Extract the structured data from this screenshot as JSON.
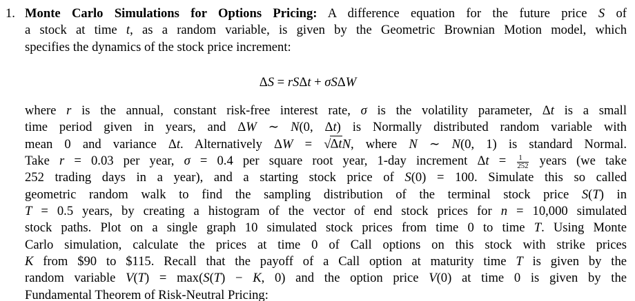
{
  "document": {
    "background_color": "#ffffff",
    "text_color": "#000000",
    "item_number": "1.",
    "heading_runs": [
      [
        "b",
        "Monte Carlo Simulations for Options Pricing:"
      ]
    ],
    "paragraph1": {
      "lines": [
        {
          "runs": [
            [
              "n",
              " A difference equation for the future price "
            ],
            [
              "i",
              "S"
            ],
            [
              "n",
              " of"
            ]
          ]
        },
        {
          "runs": [
            [
              "n",
              "a stock at time "
            ],
            [
              "i",
              "t"
            ],
            [
              "n",
              ", as a random variable, is given by the Geometric Brownian Motion model, which"
            ]
          ]
        },
        {
          "runs": [
            [
              "n",
              "specifies the dynamics of the stock price increment:"
            ]
          ]
        }
      ]
    },
    "equation": {
      "runs": [
        [
          "n",
          "Δ"
        ],
        [
          "i",
          "S"
        ],
        [
          "n",
          " = "
        ],
        [
          "i",
          "rS"
        ],
        [
          "n",
          "Δ"
        ],
        [
          "i",
          "t"
        ],
        [
          "n",
          " + "
        ],
        [
          "i",
          "σS"
        ],
        [
          "n",
          "Δ"
        ],
        [
          "i",
          "W"
        ]
      ]
    },
    "paragraph2": {
      "lines": [
        {
          "runs": [
            [
              "n",
              "where "
            ],
            [
              "i",
              "r"
            ],
            [
              "n",
              " is the annual, constant risk-free interest rate, "
            ],
            [
              "i",
              "σ"
            ],
            [
              "n",
              " is the volatility parameter, Δ"
            ],
            [
              "i",
              "t"
            ],
            [
              "n",
              " is a small"
            ]
          ]
        },
        {
          "runs": [
            [
              "n",
              "time period given in years, and Δ"
            ],
            [
              "i",
              "W"
            ],
            [
              "n",
              " ∼ "
            ],
            [
              "i",
              "N"
            ],
            [
              "n",
              "(0, Δ"
            ],
            [
              "i",
              "t"
            ],
            [
              "n",
              ") is Normally distributed random variable with"
            ]
          ]
        },
        {
          "runs": [
            [
              "n",
              "mean 0 and variance Δ"
            ],
            [
              "i",
              "t"
            ],
            [
              "n",
              ". Alternatively Δ"
            ],
            [
              "i",
              "W"
            ],
            [
              "n",
              " = "
            ],
            [
              "sqrt",
              [
                [
                  "n",
                  "Δ"
                ],
                [
                  "i",
                  "t"
                ]
              ]
            ],
            [
              "i",
              "N"
            ],
            [
              "n",
              ", where "
            ],
            [
              "i",
              "N"
            ],
            [
              "n",
              " ∼ "
            ],
            [
              "i",
              "N"
            ],
            [
              "n",
              "(0, 1) is standard Normal."
            ]
          ]
        },
        {
          "runs": [
            [
              "n",
              "Take "
            ],
            [
              "i",
              "r"
            ],
            [
              "n",
              " = 0.03 per year, "
            ],
            [
              "i",
              "σ"
            ],
            [
              "n",
              " = 0.4 per square root year, 1-day increment Δ"
            ],
            [
              "i",
              "t"
            ],
            [
              "n",
              " = "
            ],
            [
              "frac",
              "1",
              "252"
            ],
            [
              "n",
              " years (we take"
            ]
          ]
        },
        {
          "runs": [
            [
              "n",
              "252 trading days in a year), and a starting stock price of "
            ],
            [
              "i",
              "S"
            ],
            [
              "n",
              "(0) = 100. Simulate this so called"
            ]
          ]
        },
        {
          "runs": [
            [
              "n",
              "geometric random walk to find the sampling distribution of the terminal stock price "
            ],
            [
              "i",
              "S"
            ],
            [
              "n",
              "("
            ],
            [
              "i",
              "T"
            ],
            [
              "n",
              ") in"
            ]
          ]
        },
        {
          "runs": [
            [
              "i",
              "T"
            ],
            [
              "n",
              " = 0.5 years, by creating a histogram of the vector of end stock prices for "
            ],
            [
              "i",
              "n"
            ],
            [
              "n",
              " = 10,000 simulated"
            ]
          ]
        },
        {
          "runs": [
            [
              "n",
              "stock paths. Plot on a single graph 10 simulated stock prices from time 0 to time "
            ],
            [
              "i",
              "T"
            ],
            [
              "n",
              ". Using Monte"
            ]
          ]
        },
        {
          "runs": [
            [
              "n",
              "Carlo simulation, calculate the prices at time 0 of Call options on this stock with strike prices"
            ]
          ]
        },
        {
          "runs": [
            [
              "i",
              "K"
            ],
            [
              "n",
              " from $90 to $115. Recall that the payoff of a Call option at maturity time "
            ],
            [
              "i",
              "T"
            ],
            [
              "n",
              " is given by the"
            ]
          ]
        },
        {
          "runs": [
            [
              "n",
              "random variable "
            ],
            [
              "i",
              "V"
            ],
            [
              "n",
              "("
            ],
            [
              "i",
              "T"
            ],
            [
              "n",
              ") = max("
            ],
            [
              "i",
              "S"
            ],
            [
              "n",
              "("
            ],
            [
              "i",
              "T"
            ],
            [
              "n",
              ") − "
            ],
            [
              "i",
              "K"
            ],
            [
              "n",
              ", 0) and the option price "
            ],
            [
              "i",
              "V"
            ],
            [
              "n",
              "(0) at time 0 is given by the"
            ]
          ]
        },
        {
          "runs": [
            [
              "n",
              "Fundamental Theorem of Risk-Neutral Pricing:"
            ]
          ]
        }
      ]
    }
  }
}
